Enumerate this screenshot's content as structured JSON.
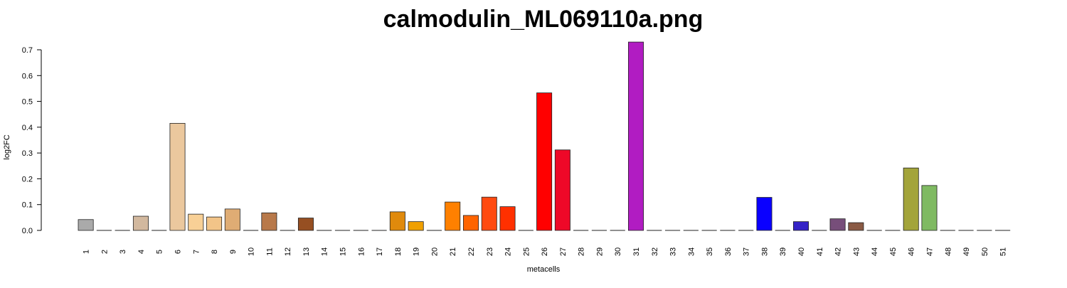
{
  "chart_data": {
    "type": "bar",
    "title": "calmodulin_ML069110a.png",
    "xlabel": "metacells",
    "ylabel": "log2FC",
    "ylim": [
      0,
      0.7
    ],
    "yticks": [
      "0.0",
      "0.1",
      "0.2",
      "0.3",
      "0.4",
      "0.5",
      "0.6",
      "0.7"
    ],
    "grid": false,
    "categories": [
      "1",
      "2",
      "3",
      "4",
      "5",
      "6",
      "7",
      "8",
      "9",
      "10",
      "11",
      "12",
      "13",
      "14",
      "15",
      "16",
      "17",
      "18",
      "19",
      "20",
      "21",
      "22",
      "23",
      "24",
      "25",
      "26",
      "27",
      "28",
      "29",
      "30",
      "31",
      "32",
      "33",
      "34",
      "35",
      "36",
      "37",
      "38",
      "39",
      "40",
      "41",
      "42",
      "43",
      "44",
      "45",
      "46",
      "47",
      "48",
      "49",
      "50",
      "51"
    ],
    "values": [
      0.042,
      0,
      0,
      0.055,
      0,
      0.415,
      0.063,
      0.052,
      0.083,
      0,
      0.068,
      0,
      0.048,
      0,
      0,
      0,
      0,
      0.072,
      0.034,
      0,
      0.11,
      0.058,
      0.129,
      0.092,
      0,
      0.533,
      0.312,
      0,
      0,
      0,
      0.73,
      0,
      0,
      0,
      0,
      0,
      0,
      0.128,
      0,
      0.034,
      0,
      0.045,
      0.03,
      0,
      0,
      0.242,
      0.174,
      0,
      0,
      0,
      0
    ],
    "colors": [
      "#aaaaaa",
      "#aaaaaa",
      "#aaaaaa",
      "#d2b89e",
      "#d2b89e",
      "#ebc89e",
      "#f8d096",
      "#f2c488",
      "#dfac74",
      "#c8905a",
      "#b8794a",
      "#a0643a",
      "#964f22",
      "#a05a20",
      "#c0701a",
      "#d07a10",
      "#dc8010",
      "#e08a0c",
      "#f0a000",
      "#f59000",
      "#ff8000",
      "#ff6400",
      "#ff4a10",
      "#ff3000",
      "#ff2000",
      "#ff0000",
      "#ee0828",
      "#e01040",
      "#d01060",
      "#c81890",
      "#b11cc2",
      "#9a20c8",
      "#8020d0",
      "#6020e0",
      "#4010ea",
      "#2010f4",
      "#1010f8",
      "#0a00ff",
      "#2010e0",
      "#3523c7",
      "#5030a8",
      "#774e7a",
      "#8a5a44",
      "#8a6a3a",
      "#908a38",
      "#a3a43a",
      "#7fba62",
      "#7fba62",
      "#7fba62",
      "#7fba62",
      "#7fba62"
    ]
  }
}
